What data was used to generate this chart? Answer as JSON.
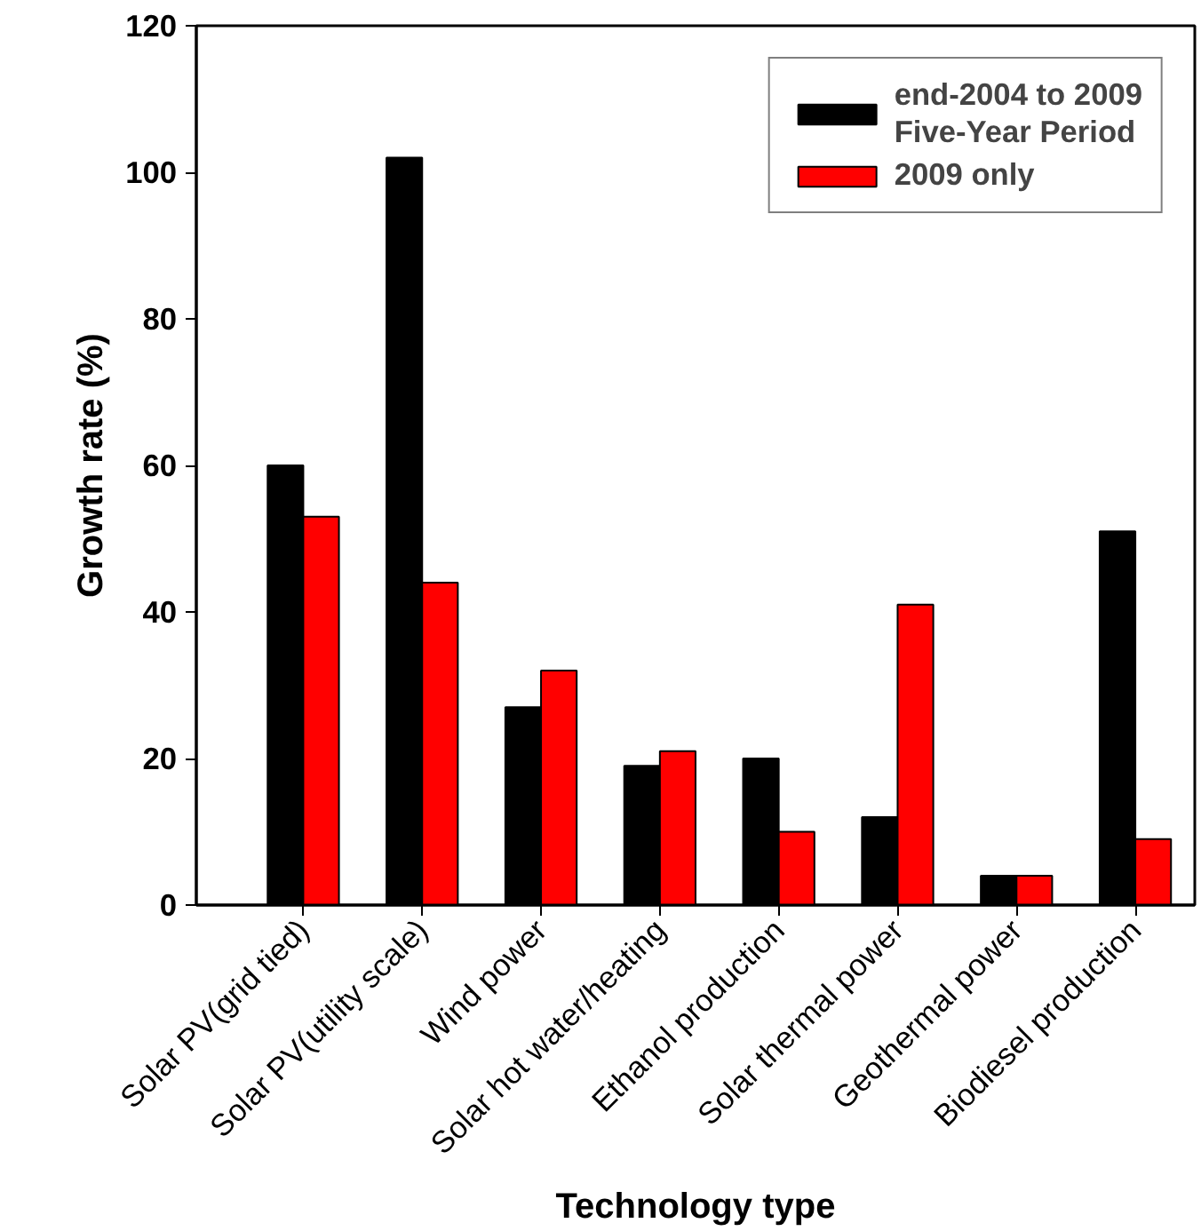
{
  "chart_data": {
    "type": "bar",
    "xlabel": "Technology type",
    "ylabel": "Growth rate (%)",
    "categories": [
      "Solar PV(grid tied)",
      "Solar PV(utility scale)",
      "Wind power",
      "Solar hot water/heating",
      "Ethanol production",
      "Solar thermal power",
      "Geothermal power",
      "Biodiesel production"
    ],
    "series": [
      {
        "name": "end-2004 to 2009\nFive-Year Period",
        "color": "#000000",
        "values": [
          60,
          102,
          27,
          19,
          20,
          12,
          4,
          51
        ]
      },
      {
        "name": "2009 only",
        "color": "#ff0000",
        "values": [
          53,
          44,
          32,
          21,
          10,
          41,
          4,
          9
        ]
      }
    ],
    "ylim": [
      0,
      120
    ],
    "yticks": [
      0,
      20,
      40,
      60,
      80,
      100,
      120
    ],
    "grid": false,
    "legend": "top right"
  }
}
